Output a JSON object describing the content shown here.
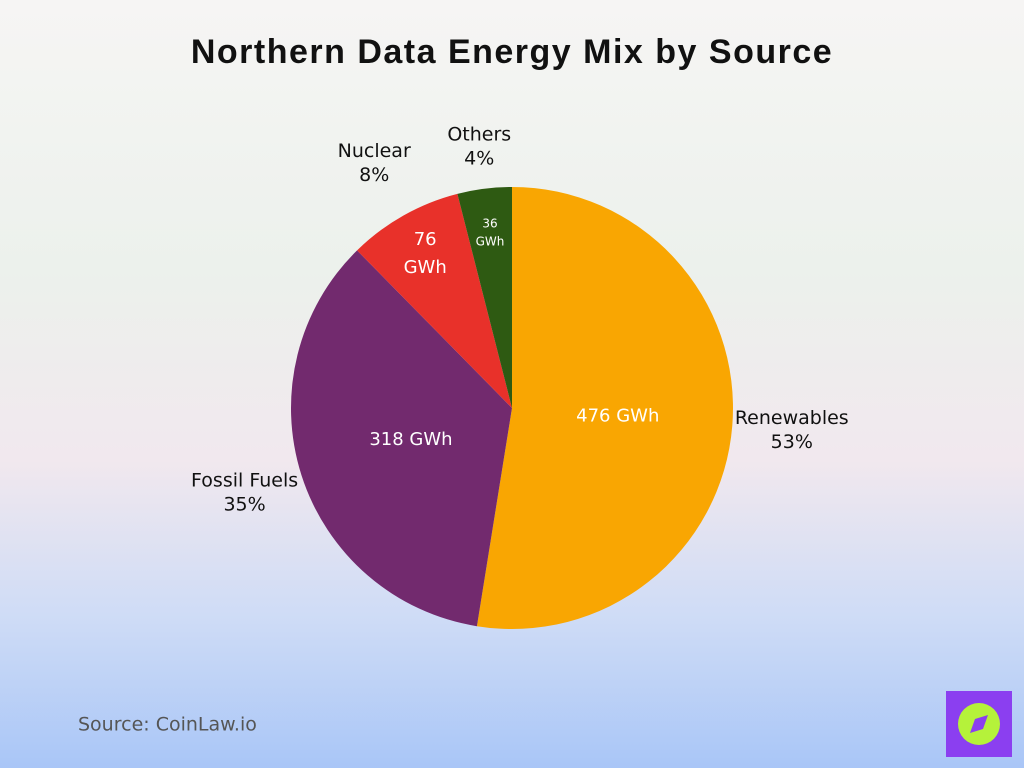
{
  "chart_data": {
    "type": "pie",
    "title": "Northern Data Energy Mix by Source",
    "categories": [
      "Renewables",
      "Fossil Fuels",
      "Nuclear",
      "Others"
    ],
    "values": [
      476,
      318,
      76,
      36
    ],
    "value_labels": [
      "476 GWh",
      "318 GWh",
      "76 GWh",
      "36 GWh"
    ],
    "percent_labels": [
      "53%",
      "35%",
      "8%",
      "4%"
    ],
    "colors": [
      "#f9a602",
      "#722a6e",
      "#e8312a",
      "#2e5a12"
    ],
    "start_angle": 0,
    "direction": "clockwise",
    "source": "Source: CoinLaw.io"
  }
}
